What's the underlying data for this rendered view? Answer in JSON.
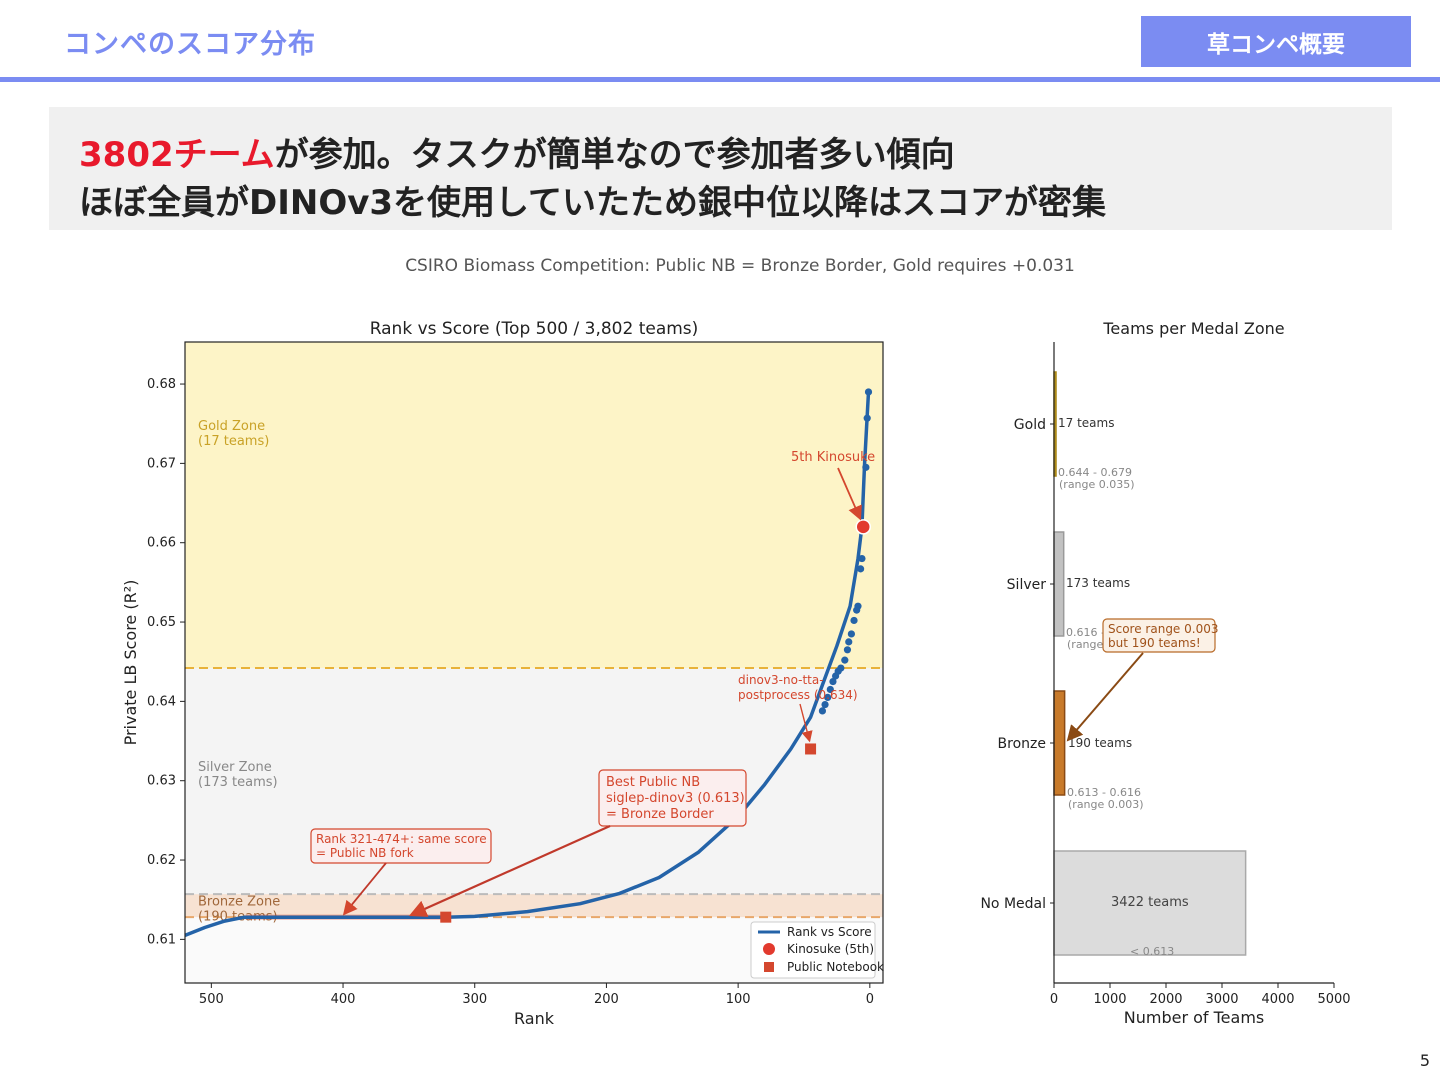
{
  "header": {
    "title": "コンペのスコア分布",
    "tag": "草コンペ概要"
  },
  "callout": {
    "line1_highlight": "3802チーム",
    "line1_rest": "が参加。タスクが簡単なので参加者多い傾向",
    "line2": "ほぼ全員がDINOv3を使用していたため銀中位以降はスコアが密集"
  },
  "page_number": "5",
  "colors": {
    "accent": "#7b8cf2",
    "highlight": "#e8192c",
    "line": "#2463a8",
    "gold": "#c9a227",
    "annotation": "#d4472e",
    "bronze": "#b86a28"
  },
  "chart_data": [
    {
      "type": "line",
      "figure_title": "CSIRO Biomass Competition: Public NB = Bronze Border, Gold requires +0.031",
      "title": "Rank vs Score (Top 500 / 3,802 teams)",
      "xlabel": "Rank",
      "ylabel": "Private LB Score (R²)",
      "xlim": [
        520,
        -10
      ],
      "ylim": [
        0.6045,
        0.6853
      ],
      "xticks": [
        500,
        400,
        300,
        200,
        100,
        0
      ],
      "yticks": [
        0.61,
        0.62,
        0.63,
        0.64,
        0.65,
        0.66,
        0.67,
        0.68
      ],
      "grid": false,
      "legend_position": "bottom-right",
      "zones": [
        {
          "name": "Gold Zone",
          "label_line1": "Gold Zone",
          "label_line2": "(17 teams)",
          "from": 0.6442,
          "to": 0.6853,
          "color": "#fdf4c7",
          "line_color": "#e8b23a",
          "text_color": "#c9a227"
        },
        {
          "name": "Silver Zone",
          "label_line1": "Silver Zone",
          "label_line2": "(173 teams)",
          "from": 0.6157,
          "to": 0.6442,
          "color": "#f4f4f4",
          "line_color": "#bbbbbb",
          "text_color": "#888888"
        },
        {
          "name": "Bronze Zone",
          "label_line1": "Bronze Zone",
          "label_line2": "(190 teams)",
          "from": 0.6128,
          "to": 0.6157,
          "color": "#f7e2d2",
          "line_color": "#e8a76a",
          "text_color": "#a0673a"
        }
      ],
      "series": [
        {
          "name": "Rank vs Score",
          "curve": [
            [
              520,
              0.6105
            ],
            [
              505,
              0.6115
            ],
            [
              490,
              0.6123
            ],
            [
              475,
              0.6128
            ],
            [
              420,
              0.6128
            ],
            [
              360,
              0.6128
            ],
            [
              322,
              0.6128
            ],
            [
              300,
              0.6129
            ],
            [
              260,
              0.6135
            ],
            [
              220,
              0.6145
            ],
            [
              190,
              0.6158
            ],
            [
              160,
              0.6178
            ],
            [
              130,
              0.621
            ],
            [
              100,
              0.6255
            ],
            [
              80,
              0.6295
            ],
            [
              60,
              0.634
            ],
            [
              45,
              0.638
            ],
            [
              35,
              0.6425
            ],
            [
              25,
              0.647
            ],
            [
              15,
              0.652
            ],
            [
              9,
              0.658
            ],
            [
              6,
              0.662
            ],
            [
              4,
              0.67
            ],
            [
              2,
              0.676
            ],
            [
              1,
              0.679
            ]
          ],
          "points": [
            [
              1,
              0.679
            ],
            [
              2,
              0.6757
            ],
            [
              3,
              0.6695
            ],
            [
              5,
              0.662
            ],
            [
              6,
              0.658
            ],
            [
              7,
              0.6567
            ],
            [
              9,
              0.652
            ],
            [
              10,
              0.6515
            ],
            [
              12,
              0.6502
            ],
            [
              14,
              0.6485
            ],
            [
              16,
              0.6475
            ],
            [
              17,
              0.6465
            ],
            [
              19,
              0.6452
            ],
            [
              22,
              0.6442
            ],
            [
              24,
              0.6438
            ],
            [
              26,
              0.6432
            ],
            [
              28,
              0.6425
            ],
            [
              30,
              0.6415
            ],
            [
              32,
              0.6405
            ],
            [
              34,
              0.6396
            ],
            [
              36,
              0.6388
            ]
          ]
        },
        {
          "name": "Kinosuke (5th)",
          "points": [
            [
              5,
              0.662
            ]
          ]
        },
        {
          "name": "Public Notebook",
          "points": [
            [
              322,
              0.6128
            ],
            [
              45,
              0.634
            ]
          ]
        }
      ],
      "annotations": [
        {
          "id": "kinosuke",
          "lines": [
            "5th Kinosuke"
          ],
          "x": 5,
          "y": 0.662
        },
        {
          "id": "dinov3",
          "lines": [
            "dinov3-no-tta-",
            "postprocess (0.634)"
          ],
          "x": 45,
          "y": 0.634
        },
        {
          "id": "best-nb",
          "lines": [
            "Best Public NB",
            "siglep-dinov3 (0.613)",
            "= Bronze Border"
          ],
          "x": 350,
          "y": 0.6128
        },
        {
          "id": "same-score",
          "lines": [
            "Rank 321-474+: same score",
            "= Public NB fork"
          ],
          "x": 400,
          "y": 0.6128
        }
      ]
    },
    {
      "type": "bar",
      "title": "Teams per Medal Zone",
      "xlabel": "Number of Teams",
      "xlim": [
        0,
        5000
      ],
      "xticks": [
        0,
        1000,
        2000,
        3000,
        4000,
        5000
      ],
      "categories": [
        "Gold",
        "Silver",
        "Bronze",
        "No Medal"
      ],
      "values": [
        17,
        173,
        190,
        3422
      ],
      "value_labels": [
        "17 teams",
        "173 teams",
        "190 teams",
        "3422 teams"
      ],
      "range_labels": [
        [
          "0.644 - 0.679",
          "(range 0.035)"
        ],
        [
          "0.616 - ",
          "(range 0"
        ],
        [
          "0.613 - 0.616",
          "(range 0.003)"
        ],
        [
          "< 0.613",
          ""
        ]
      ],
      "colors": [
        "#c9a227",
        "#c2c2c2",
        "#c87a2a",
        "#dcdcdc"
      ],
      "edge_colors": [
        "#a88512",
        "#9a9a9a",
        "#8a4a14",
        "#a9a9a9"
      ],
      "annotation": {
        "lines": [
          "Score range 0.003",
          "but 190 teams!"
        ],
        "category": "Bronze",
        "x": 190
      }
    }
  ]
}
